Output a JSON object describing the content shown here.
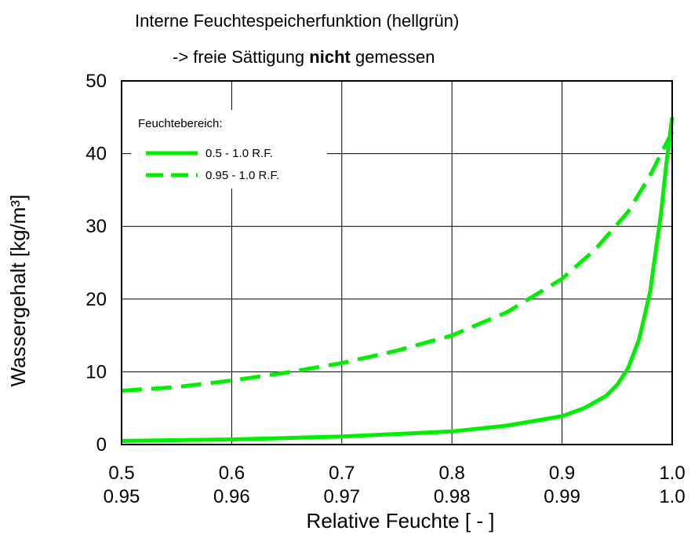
{
  "chart_data": {
    "type": "line",
    "title_line1": "Interne Feuchtespeicherfunktion (hellgrün)",
    "title_line2_prefix": "-> freie Sättigung ",
    "title_line2_bold": "nicht",
    "title_line2_suffix": " gemessen",
    "ylabel": "Wassergehalt [kg/m³]",
    "xlabel": "Relative Feuchte [ - ]",
    "ylim": [
      0,
      50
    ],
    "yticks": [
      "0",
      "10",
      "20",
      "30",
      "40",
      "50"
    ],
    "xticks_top": [
      "0.5",
      "0.6",
      "0.7",
      "0.8",
      "0.9",
      "1.0"
    ],
    "xticks_bottom": [
      "0.95",
      "0.96",
      "0.97",
      "0.98",
      "0.99",
      "1.0"
    ],
    "grid": true,
    "legend_title": "Feuchtebereich:",
    "legend_position": "top-left",
    "line_color": "#00ee00",
    "series": [
      {
        "name": "0.5  -  1.0 R.F.",
        "style": "solid",
        "x_range": [
          0.5,
          1.0
        ],
        "x": [
          0.5,
          0.6,
          0.7,
          0.8,
          0.85,
          0.9,
          0.92,
          0.94,
          0.95,
          0.96,
          0.97,
          0.98,
          0.99,
          0.995,
          1.0
        ],
        "y": [
          0.5,
          0.7,
          1.1,
          1.8,
          2.6,
          3.9,
          5.0,
          6.7,
          8.2,
          10.5,
          14.5,
          21.0,
          32.0,
          39.0,
          45.0
        ]
      },
      {
        "name": "0.95 - 1.0 R.F.",
        "style": "dashed",
        "x_range": [
          0.95,
          1.0
        ],
        "x": [
          0.95,
          0.955,
          0.96,
          0.965,
          0.97,
          0.975,
          0.98,
          0.985,
          0.99,
          0.993,
          0.996,
          0.998,
          1.0
        ],
        "y": [
          7.4,
          7.9,
          8.8,
          9.9,
          11.2,
          12.9,
          15.0,
          18.2,
          22.8,
          26.8,
          32.0,
          37.0,
          43.0
        ]
      }
    ]
  }
}
